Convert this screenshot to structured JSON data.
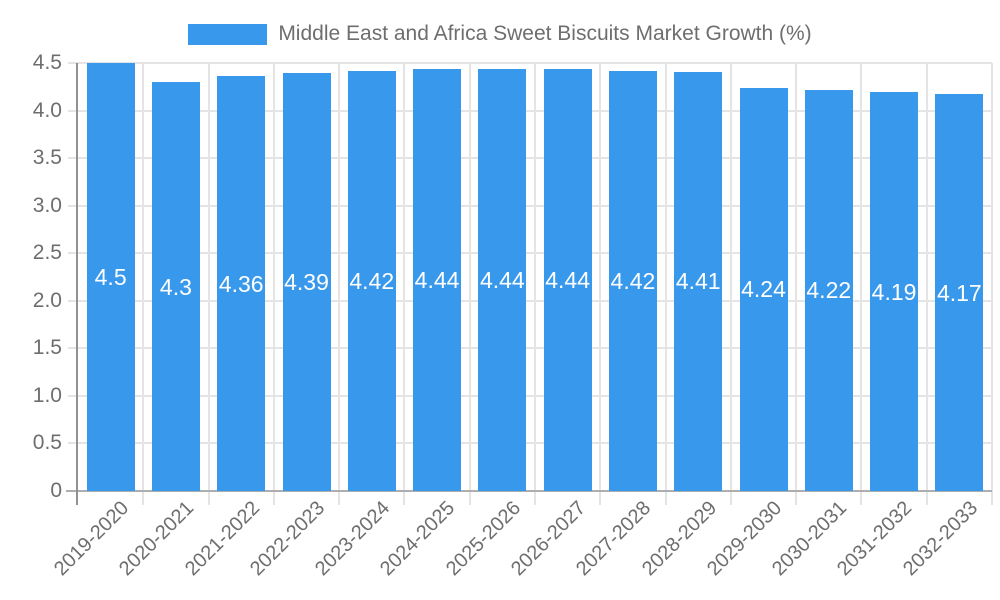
{
  "legend": {
    "label": "Middle East and Africa Sweet Biscuits Market Growth (%)"
  },
  "colors": {
    "bar": "#3899EC",
    "grid": "#e4e4e4",
    "y_axis_line": "#919191",
    "x_axis_line": "#aeaeae",
    "axis_text": "#6e6e6e",
    "value_text": "#ffffff",
    "background": "#ffffff"
  },
  "chart_data": {
    "type": "bar",
    "title": "Middle East and Africa Sweet Biscuits Market Growth (%)",
    "xlabel": "",
    "ylabel": "",
    "categories": [
      "2019-2020",
      "2020-2021",
      "2021-2022",
      "2022-2023",
      "2023-2024",
      "2024-2025",
      "2025-2026",
      "2026-2027",
      "2027-2028",
      "2028-2029",
      "2029-2030",
      "2030-2031",
      "2031-2032",
      "2032-2033"
    ],
    "values": [
      4.5,
      4.3,
      4.36,
      4.39,
      4.42,
      4.44,
      4.44,
      4.44,
      4.42,
      4.41,
      4.24,
      4.22,
      4.19,
      4.17
    ],
    "value_labels": [
      "4.5",
      "4.3",
      "4.36",
      "4.39",
      "4.42",
      "4.44",
      "4.44",
      "4.44",
      "4.42",
      "4.41",
      "4.24",
      "4.22",
      "4.19",
      "4.17"
    ],
    "ylim": [
      0,
      4.5
    ],
    "yticks": [
      {
        "value": 4.5,
        "label": "4.5"
      },
      {
        "value": 4.0,
        "label": "4.0"
      },
      {
        "value": 3.5,
        "label": "3.5"
      },
      {
        "value": 3.0,
        "label": "3.0"
      },
      {
        "value": 2.5,
        "label": "2.5"
      },
      {
        "value": 2.0,
        "label": "2.0"
      },
      {
        "value": 1.5,
        "label": "1.5"
      },
      {
        "value": 1.0,
        "label": "1.0"
      },
      {
        "value": 0.5,
        "label": "0.5"
      },
      {
        "value": 0,
        "label": "0"
      }
    ],
    "grid": true,
    "legend_position": "top",
    "x_tick_rotation_deg": -45,
    "value_label_position": "center-of-bar"
  }
}
